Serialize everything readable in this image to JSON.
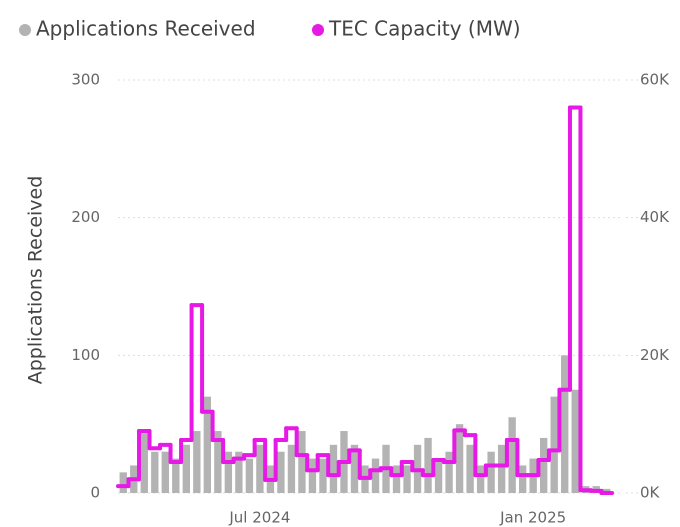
{
  "chart_data": {
    "type": "combo",
    "y_label": "Applications Received",
    "categories": [
      null,
      null,
      null,
      null,
      null,
      null,
      null,
      null,
      null,
      null,
      null,
      null,
      null,
      "Jul 2024",
      null,
      null,
      null,
      null,
      null,
      null,
      null,
      null,
      null,
      null,
      null,
      null,
      null,
      null,
      null,
      null,
      null,
      null,
      null,
      null,
      null,
      null,
      null,
      null,
      null,
      "Jan 2025",
      null,
      null,
      null,
      null,
      null,
      null,
      null
    ],
    "series": [
      {
        "name": "Applications Received",
        "type": "bar",
        "color": "#b3b3b3",
        "values": [
          15,
          20,
          45,
          30,
          30,
          25,
          35,
          45,
          70,
          45,
          30,
          30,
          25,
          35,
          20,
          30,
          35,
          45,
          25,
          25,
          35,
          45,
          35,
          20,
          25,
          35,
          20,
          20,
          35,
          40,
          25,
          30,
          50,
          35,
          20,
          30,
          35,
          55,
          20,
          25,
          40,
          70,
          100,
          75,
          5,
          5,
          3
        ]
      },
      {
        "name": "TEC Capacity (MW)",
        "type": "line",
        "axis": "y2",
        "color": "#e619e6",
        "values": [
          1000,
          2000,
          9000,
          6500,
          7000,
          4500,
          7700,
          27300,
          11800,
          7700,
          4500,
          5000,
          5500,
          7700,
          1900,
          7700,
          9400,
          5500,
          3300,
          5500,
          2600,
          4500,
          6200,
          2200,
          3300,
          3600,
          2600,
          4500,
          3300,
          2600,
          4800,
          4500,
          9100,
          8400,
          2600,
          4000,
          4000,
          7700,
          2600,
          2600,
          4800,
          6200,
          15000,
          56000,
          400,
          300,
          0
        ]
      }
    ],
    "ylim": [
      0,
      300
    ],
    "yticks": [
      0,
      100,
      200,
      300
    ],
    "y2lim": [
      0,
      60000
    ],
    "y2ticks": [
      {
        "value": 0,
        "label": "0K"
      },
      {
        "value": 20000,
        "label": "20K"
      },
      {
        "value": 40000,
        "label": "40K"
      },
      {
        "value": 60000,
        "label": "60K"
      }
    ],
    "grid": true
  }
}
